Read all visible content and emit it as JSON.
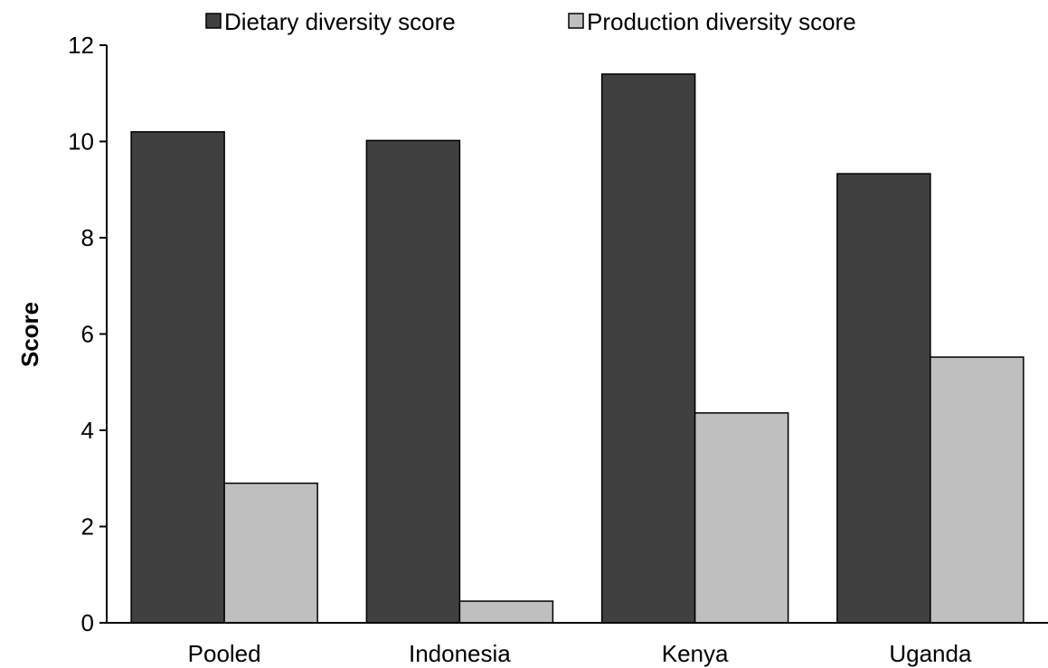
{
  "chart_data": {
    "type": "bar",
    "title": "",
    "xlabel": "",
    "ylabel": "Score",
    "categories": [
      "Pooled",
      "Indonesia",
      "Kenya",
      "Uganda"
    ],
    "series": [
      {
        "name": "Dietary diversity score",
        "values": [
          10.2,
          10.02,
          11.4,
          9.33
        ],
        "color": "#404040"
      },
      {
        "name": "Production diversity score",
        "values": [
          2.9,
          0.45,
          4.36,
          5.52
        ],
        "color": "#bfbfbf"
      }
    ],
    "ylim": [
      0,
      12
    ],
    "yticks": [
      "0",
      "2",
      "4",
      "6",
      "8",
      "10",
      "12"
    ],
    "grid": false,
    "legend_position": "top"
  }
}
